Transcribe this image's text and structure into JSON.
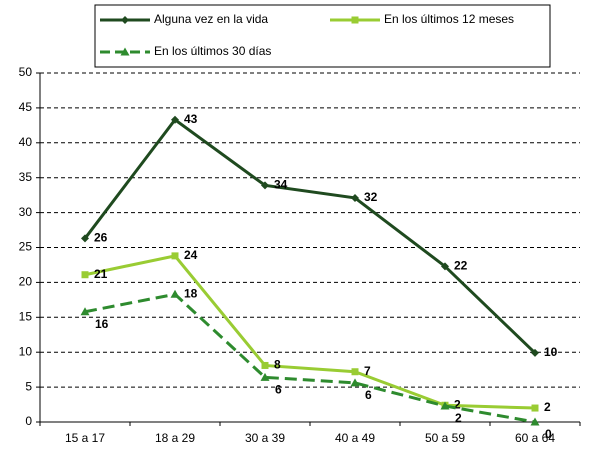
{
  "chart_data": {
    "type": "line",
    "categories": [
      "15 a 17",
      "18 a 29",
      "30 a 39",
      "40 a 49",
      "50 a 59",
      "60 a 64"
    ],
    "series": [
      {
        "name": "Alguna vez en la vida",
        "color": "#1f4a1f",
        "marker": "diamond",
        "dash": false,
        "values": [
          26.3,
          43.3,
          33.9,
          32.1,
          22.3,
          9.9
        ],
        "value_labels": [
          "26",
          "43",
          "34",
          "32",
          "22",
          "10"
        ]
      },
      {
        "name": "En los últimos 12 meses",
        "color": "#99cc33",
        "marker": "square",
        "dash": false,
        "values": [
          21.1,
          23.8,
          8.1,
          7.2,
          2.4,
          2.0
        ],
        "value_labels": [
          "21",
          "24",
          "8",
          "7",
          "2",
          "2"
        ]
      },
      {
        "name": "En los últimos 30 días",
        "color": "#2e8b2e",
        "marker": "triangle",
        "dash": true,
        "values": [
          15.8,
          18.3,
          6.4,
          5.6,
          2.3,
          0.0
        ],
        "value_labels": [
          "16",
          "18",
          "6",
          "6",
          "2",
          "0"
        ]
      }
    ],
    "ylim": [
      0,
      50
    ],
    "yticks": [
      0,
      5,
      10,
      15,
      20,
      25,
      30,
      35,
      40,
      45,
      50
    ],
    "grid": true
  }
}
